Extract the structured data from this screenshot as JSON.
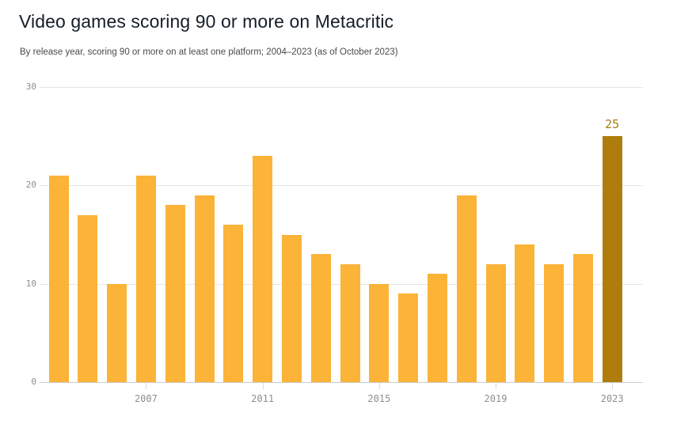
{
  "header": {
    "title": "Video games scoring 90 or more on Metacritic",
    "subtitle": "By release year, scoring 90 or more on at least one platform; 2004–2023 (as of October 2023)"
  },
  "chart_data": {
    "type": "bar",
    "title": "Video games scoring 90 or more on Metacritic",
    "subtitle": "By release year, scoring 90 or more on at least one platform; 2004–2023 (as of October 2023)",
    "categories": [
      "2004",
      "2005",
      "2006",
      "2007",
      "2008",
      "2009",
      "2010",
      "2011",
      "2012",
      "2013",
      "2014",
      "2015",
      "2016",
      "2017",
      "2018",
      "2019",
      "2020",
      "2021",
      "2022",
      "2023"
    ],
    "values": [
      21,
      17,
      10,
      21,
      18,
      19,
      16,
      23,
      15,
      13,
      12,
      10,
      9,
      11,
      19,
      12,
      14,
      12,
      13,
      25
    ],
    "xlabel": "",
    "ylabel": "",
    "ylim": [
      0,
      30
    ],
    "yticks": [
      0,
      10,
      20,
      30
    ],
    "xticks": [
      "2007",
      "2011",
      "2015",
      "2019",
      "2023"
    ],
    "grid": true,
    "legend": false,
    "highlight": {
      "category": "2023",
      "value_label": "25"
    },
    "colors": {
      "bar": "#FBB338",
      "highlight_bar": "#AF7D0E",
      "value_label": "#A87E12",
      "gridline": "#E6E6E6",
      "baseline": "#CBCBCB",
      "tick_text": "#8E8E8E",
      "tick_mark": "#DCDCDC",
      "title": "#141E28",
      "subtitle": "#4A4A4A"
    }
  }
}
